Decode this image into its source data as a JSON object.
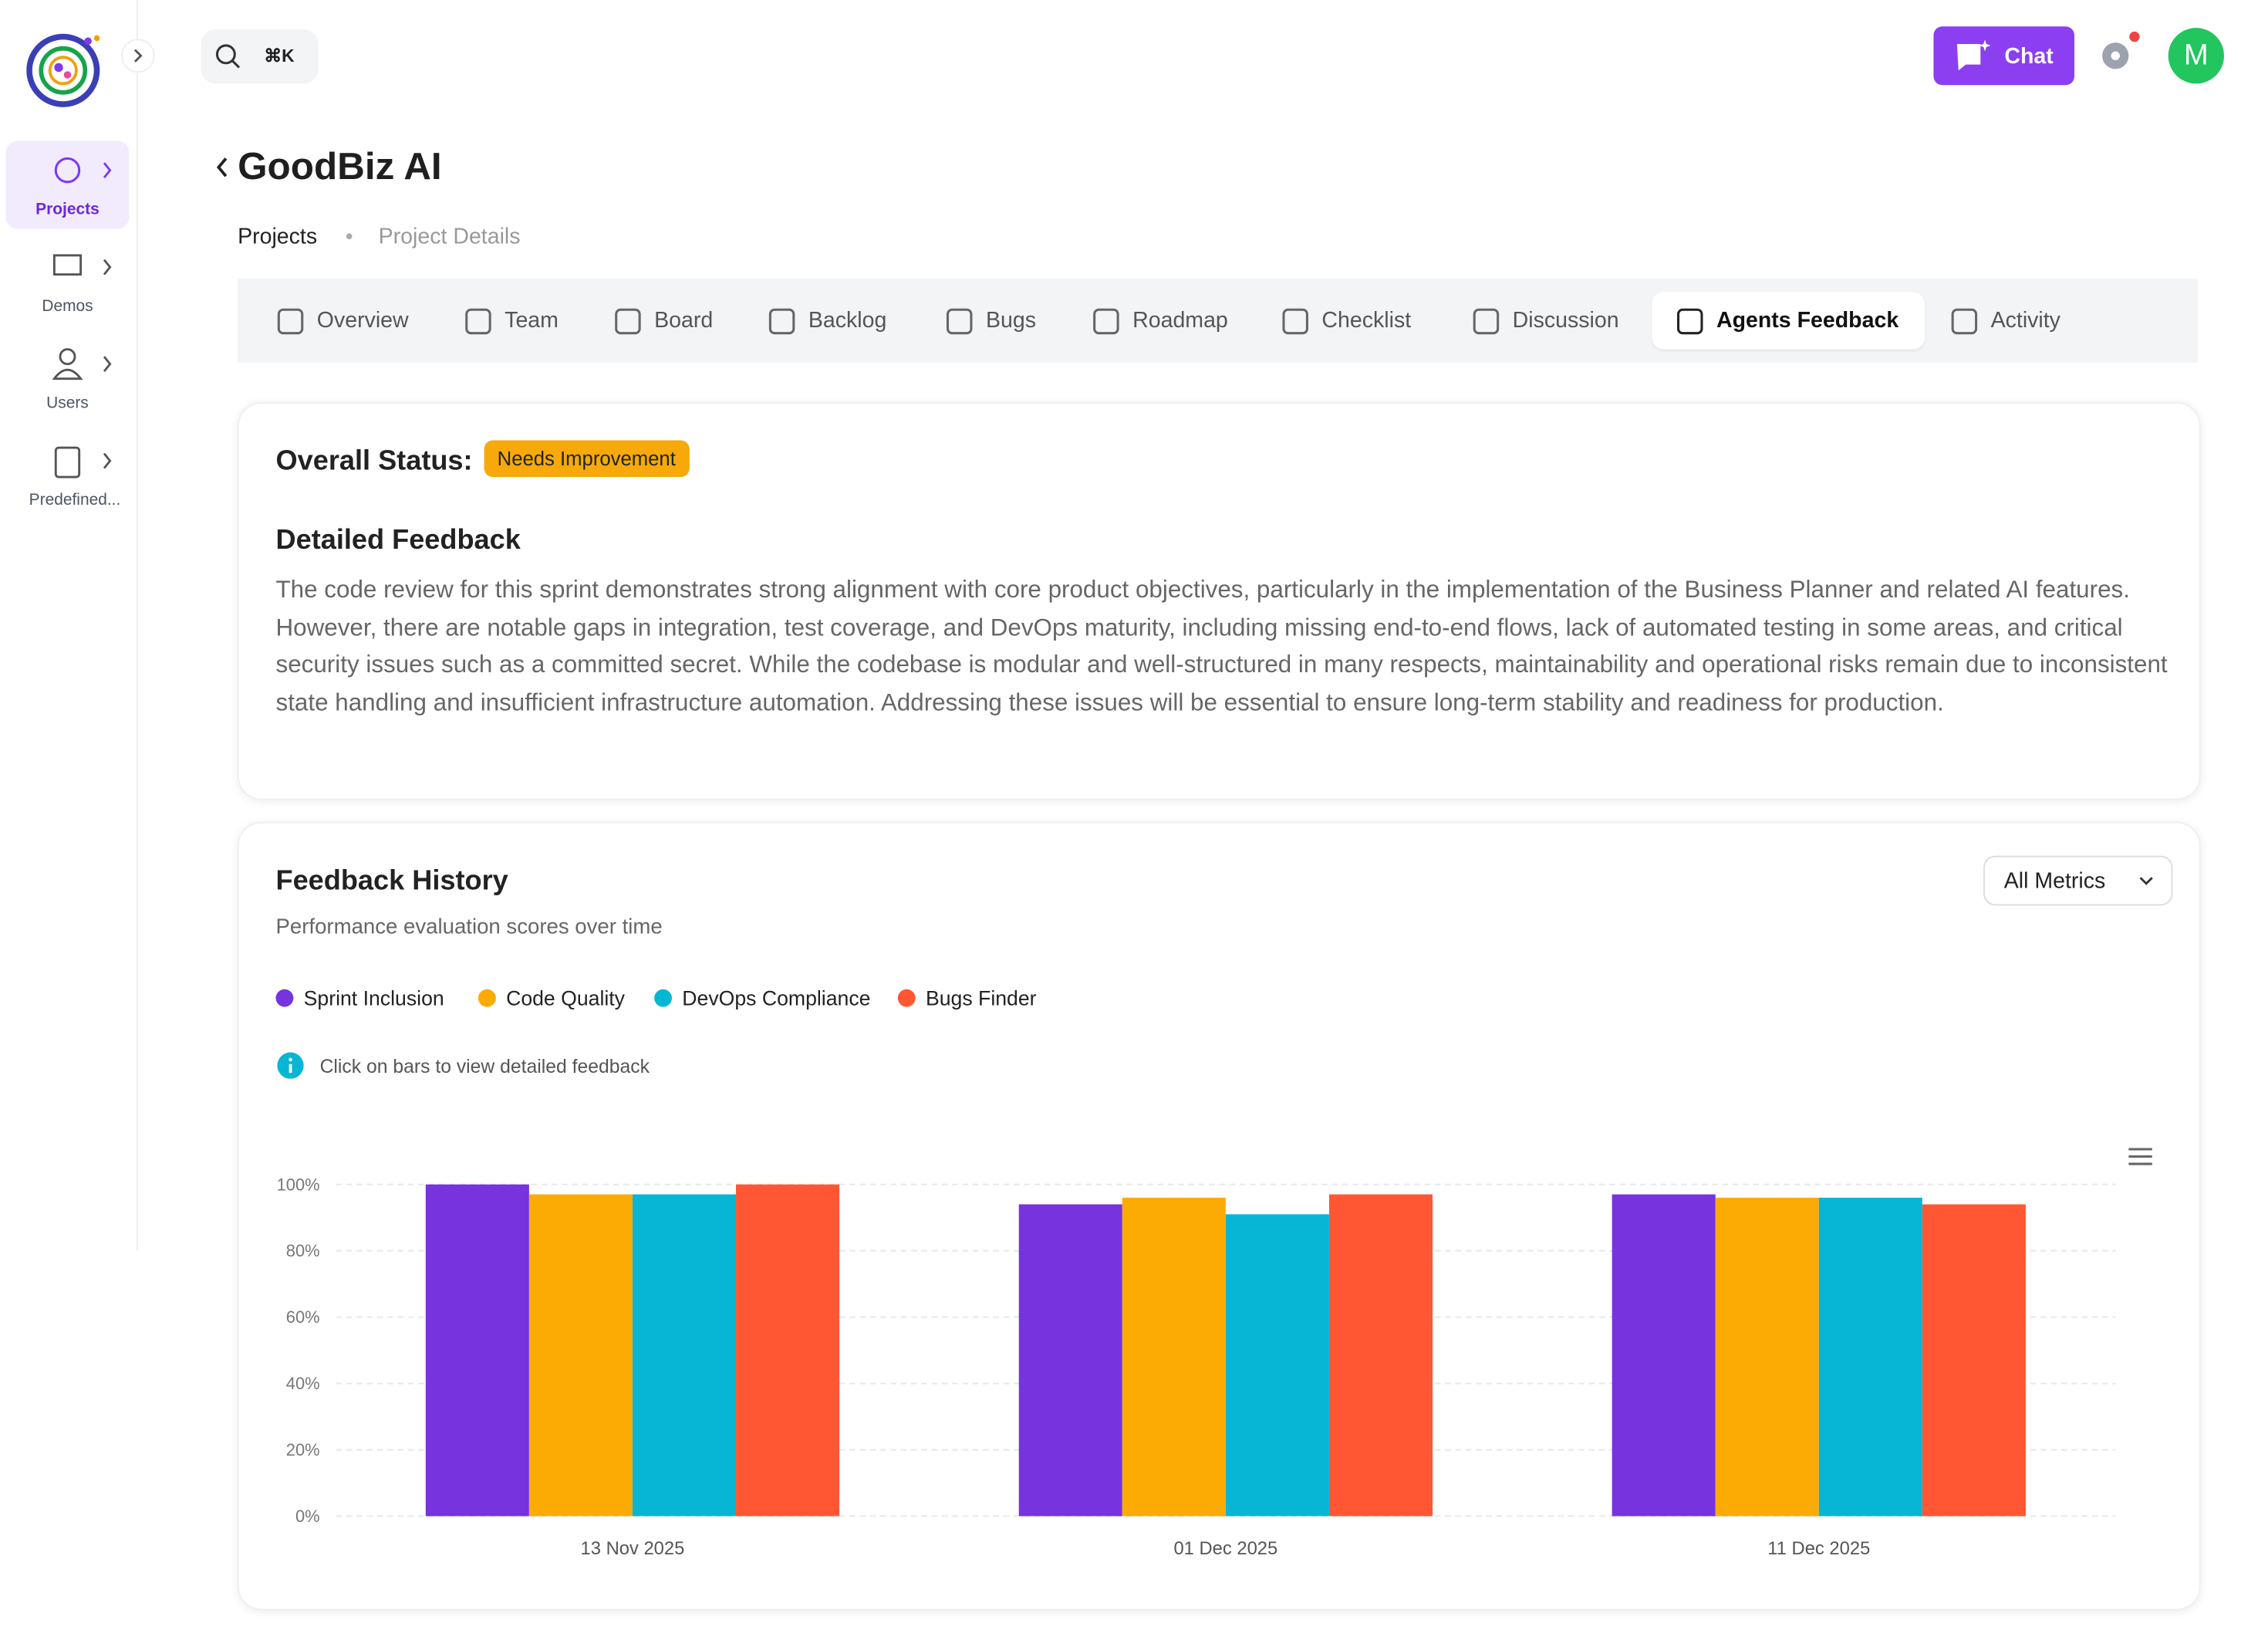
{
  "nav": [
    "Projects",
    "Demos",
    "Users",
    "Predefined..."
  ],
  "search_shortcut": "⌘K",
  "header": {
    "chat_button": "Chat",
    "avatar": "M",
    "title": "GoodBiz AI",
    "breadcrumb": [
      "Projects",
      "Project Details"
    ]
  },
  "tabs": [
    "Overview",
    "Team",
    "Board",
    "Backlog",
    "Bugs",
    "Roadmap",
    "Checklist",
    "Discussion",
    "Agents Feedback",
    "Activity"
  ],
  "status": {
    "label": "Overall Status:",
    "badge": "Needs Improvement"
  },
  "feedback": {
    "title": "Detailed Feedback",
    "text": "The code review for this sprint demonstrates strong alignment with core product objectives, particularly in the implementation of the Business Planner and related AI features. However, there are notable gaps in integration, test coverage, and DevOps maturity, including missing end-to-end flows, lack of automated testing in some areas, and critical security issues such as a committed secret. While the codebase is modular and well-structured in many respects, maintainability and operational risks remain due to inconsistent state handling and insufficient infrastructure automation. Addressing these issues will be essential to ensure long-term stability and readiness for production."
  },
  "history": {
    "title": "Feedback History",
    "subtitle": "Performance evaluation scores over time",
    "dropdown": "All Metrics",
    "hint": "Click on bars to view detailed feedback"
  },
  "chart_data": {
    "type": "bar",
    "categories": [
      "13 Nov 2025",
      "01 Dec 2025",
      "11 Dec 2025"
    ],
    "series": [
      {
        "name": "Sprint Inclusion",
        "color": "#7733dd",
        "values": [
          100,
          94,
          97
        ]
      },
      {
        "name": "Code Quality",
        "color": "#fbab03",
        "values": [
          97,
          96,
          96
        ]
      },
      {
        "name": "DevOps Compliance",
        "color": "#06b6d4",
        "values": [
          97,
          91,
          96
        ]
      },
      {
        "name": "Bugs Finder",
        "color": "#ff5733",
        "values": [
          100,
          97,
          94
        ]
      }
    ],
    "ylim": [
      0,
      100
    ],
    "yticks": [
      {
        "value": 0,
        "label": "0%"
      },
      {
        "value": 20,
        "label": "20%"
      },
      {
        "value": 40,
        "label": "40%"
      },
      {
        "value": 60,
        "label": "60%"
      },
      {
        "value": 80,
        "label": "80%"
      },
      {
        "value": 100,
        "label": "100%"
      }
    ],
    "grid": true
  }
}
